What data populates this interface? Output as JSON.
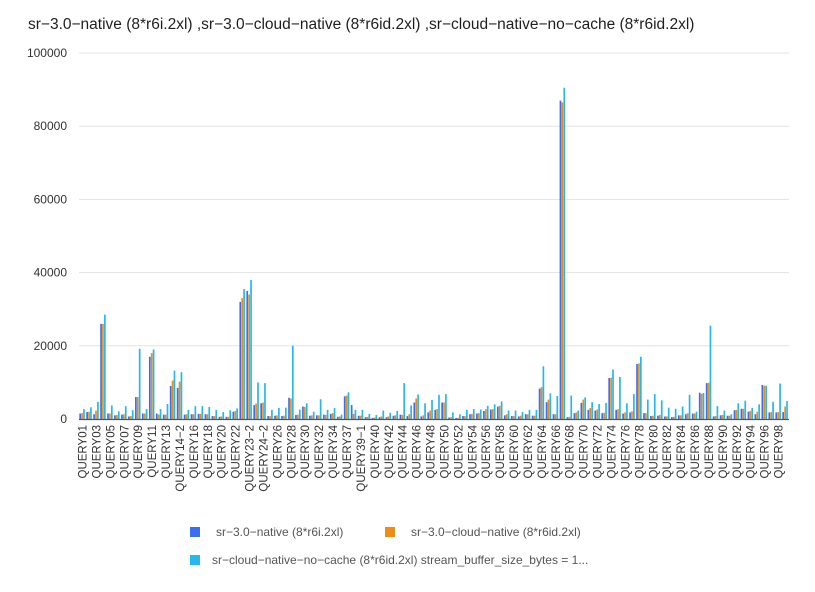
{
  "chart_data": {
    "type": "bar",
    "title": "sr−3.0−native (8*r6i.2xl) ,sr−3.0−cloud−native (8*r6id.2xl) ,sr−cloud−native−no−cache (8*r6id.2xl)",
    "xlabel": "",
    "ylabel": "",
    "ylim": [
      0,
      100000
    ],
    "yticks": [
      "0",
      "20000",
      "40000",
      "60000",
      "80000",
      "100000"
    ],
    "ytick_values": [
      0,
      20000,
      40000,
      60000,
      80000,
      100000
    ],
    "grid": true,
    "legend_position": "bottom",
    "categories": [
      "QUERY01",
      "QUERY02",
      "QUERY03",
      "QUERY04",
      "QUERY05",
      "QUERY06",
      "QUERY07",
      "QUERY08",
      "QUERY09",
      "QUERY10",
      "QUERY11",
      "QUERY12",
      "QUERY13",
      "QUERY14−1",
      "QUERY14−2",
      "QUERY15",
      "QUERY16",
      "QUERY17",
      "QUERY18",
      "QUERY19",
      "QUERY20",
      "QUERY21",
      "QUERY22",
      "QUERY23−1",
      "QUERY23−2",
      "QUERY24−1",
      "QUERY24−2",
      "QUERY25",
      "QUERY26",
      "QUERY27",
      "QUERY28",
      "QUERY29",
      "QUERY30",
      "QUERY31",
      "QUERY32",
      "QUERY33",
      "QUERY34",
      "QUERY35",
      "QUERY37",
      "QUERY38",
      "QUERY39−1",
      "QUERY39−2",
      "QUERY40",
      "QUERY41",
      "QUERY42",
      "QUERY43",
      "QUERY44",
      "QUERY45",
      "QUERY46",
      "QUERY47",
      "QUERY48",
      "QUERY49",
      "QUERY50",
      "QUERY51",
      "QUERY52",
      "QUERY53",
      "QUERY54",
      "QUERY55",
      "QUERY56",
      "QUERY57",
      "QUERY58",
      "QUERY59",
      "QUERY60",
      "QUERY61",
      "QUERY62",
      "QUERY63",
      "QUERY64",
      "QUERY65",
      "QUERY66",
      "QUERY67",
      "QUERY68",
      "QUERY69",
      "QUERY70",
      "QUERY71",
      "QUERY72",
      "QUERY73",
      "QUERY74",
      "QUERY75",
      "QUERY76",
      "QUERY77",
      "QUERY78",
      "QUERY79",
      "QUERY80",
      "QUERY81",
      "QUERY82",
      "QUERY83",
      "QUERY84",
      "QUERY85",
      "QUERY86",
      "QUERY87",
      "QUERY88",
      "QUERY89",
      "QUERY90",
      "QUERY91",
      "QUERY92",
      "QUERY93",
      "QUERY94",
      "QUERY95",
      "QUERY96",
      "QUERY97",
      "QUERY98",
      "QUERY99"
    ],
    "shown_tick_labels": "every-other",
    "series": [
      {
        "name": "sr−3.0−native (8*r6i.2xl)",
        "color": "#3b6ef0",
        "values": [
          1500,
          1900,
          1300,
          26000,
          1500,
          1000,
          1200,
          700,
          6000,
          1500,
          17000,
          1500,
          1200,
          9000,
          8500,
          1200,
          1300,
          1400,
          1300,
          800,
          600,
          600,
          2000,
          32000,
          35000,
          3800,
          4300,
          800,
          900,
          800,
          5800,
          1100,
          3400,
          900,
          1000,
          1200,
          1400,
          600,
          6200,
          3800,
          900,
          500,
          300,
          500,
          500,
          900,
          1200,
          800,
          4500,
          700,
          1800,
          2500,
          4500,
          400,
          300,
          800,
          1300,
          1500,
          2200,
          2600,
          3400,
          1000,
          800,
          700,
          1300,
          900,
          8300,
          4600,
          1300,
          87000,
          500,
          1600,
          4400,
          2500,
          2300,
          1600,
          11200,
          2500,
          1500,
          1800,
          15000,
          1600,
          800,
          900,
          700,
          500,
          1000,
          1300,
          1500,
          7200,
          9800,
          700,
          1000,
          900,
          2400,
          2800,
          2000,
          1300,
          9300,
          1800,
          1800,
          1900
        ],
        "display_values": true
      },
      {
        "name": "sr−3.0−cloud−native (8*r6id.2xl)",
        "color": "#f08c14",
        "values": [
          1600,
          2000,
          2300,
          26000,
          1500,
          1100,
          1300,
          800,
          6000,
          1500,
          18000,
          1200,
          1200,
          10500,
          10200,
          1300,
          1300,
          1400,
          1300,
          800,
          700,
          600,
          2200,
          33000,
          34000,
          4200,
          4500,
          800,
          1000,
          900,
          5600,
          1200,
          3300,
          1000,
          1000,
          1100,
          1600,
          700,
          6400,
          1400,
          900,
          600,
          400,
          700,
          700,
          1000,
          1100,
          1300,
          5600,
          1000,
          2300,
          2700,
          4500,
          500,
          300,
          800,
          1400,
          1600,
          2700,
          2700,
          3600,
          1300,
          800,
          900,
          1300,
          900,
          8700,
          5300,
          1300,
          86500,
          600,
          1800,
          5300,
          3000,
          2600,
          1700,
          11300,
          2700,
          1800,
          2100,
          15200,
          1600,
          900,
          1100,
          700,
          600,
          1000,
          1600,
          1500,
          6900,
          9900,
          800,
          1100,
          900,
          2500,
          2800,
          2200,
          2000,
          9100,
          1900,
          1900,
          3400
        ],
        "display_values": true
      },
      {
        "name": "sr−cloud−native−no−cache (8*r6id.2xl) stream_buffer_size_bytes = 1...",
        "color": "#25b8ef",
        "values": [
          2700,
          3200,
          4700,
          28500,
          3700,
          2100,
          3500,
          2400,
          19200,
          2700,
          19000,
          2700,
          4100,
          13200,
          12800,
          2500,
          3500,
          3500,
          3300,
          2500,
          1900,
          2400,
          2900,
          35500,
          38000,
          10000,
          9800,
          2500,
          3000,
          3100,
          20000,
          2600,
          4300,
          2000,
          5400,
          2500,
          3000,
          1200,
          7300,
          2500,
          2500,
          1400,
          1100,
          2300,
          1700,
          2200,
          9800,
          3700,
          6700,
          4300,
          5200,
          6600,
          6800,
          1800,
          1300,
          2500,
          2700,
          2600,
          3600,
          4000,
          4800,
          2300,
          2300,
          1900,
          2500,
          2500,
          14400,
          7000,
          6300,
          90500,
          6400,
          2300,
          5900,
          4600,
          4100,
          4400,
          13500,
          11500,
          4300,
          6800,
          17000,
          5300,
          6800,
          5100,
          3100,
          2800,
          3400,
          6600,
          2000,
          7100,
          25500,
          3500,
          2300,
          1300,
          4300,
          5000,
          3000,
          4000,
          9100,
          4700,
          9700,
          4900
        ]
      }
    ]
  },
  "legend": {
    "items": [
      {
        "label": "sr−3.0−native (8*r6i.2xl)",
        "color": "#3b6ef0"
      },
      {
        "label": "sr−3.0−cloud−native (8*r6id.2xl)",
        "color": "#f08c14"
      },
      {
        "label": "sr−cloud−native−no−cache (8*r6id.2xl) stream_buffer_size_bytes = 1...",
        "color": "#25b8ef"
      }
    ]
  }
}
